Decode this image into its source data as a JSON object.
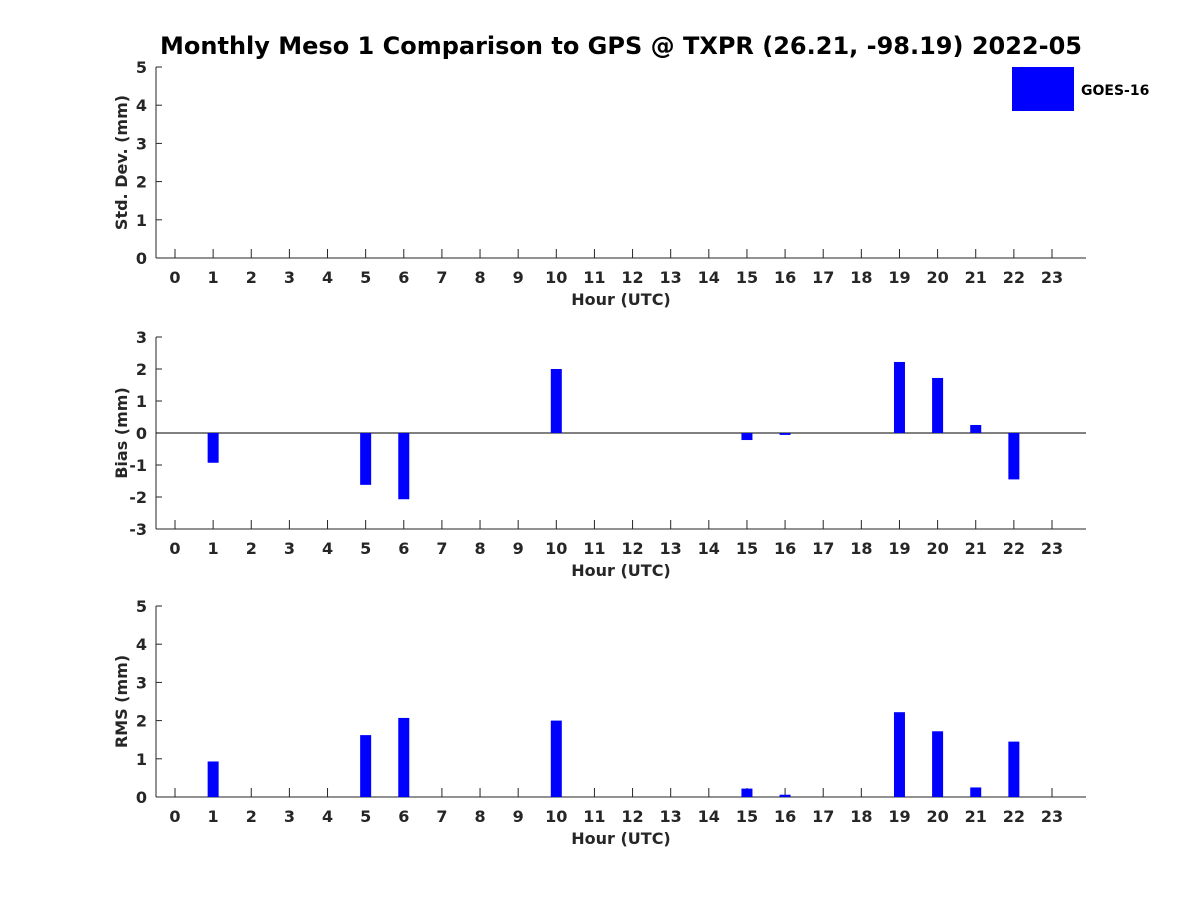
{
  "title": "Monthly Meso 1 Comparison to GPS @ TXPR (26.21, -98.19) 2022-05",
  "legend": {
    "label": "GOES-16",
    "color": "#0000ff",
    "placement": "top-right"
  },
  "chart_data": [
    {
      "type": "bar",
      "name": "std_dev",
      "ylabel": "Std. Dev. (mm)",
      "xlabel": "Hour (UTC)",
      "ylim": [
        0,
        5
      ],
      "yticks": [
        0,
        1,
        2,
        3,
        4,
        5
      ],
      "categories": [
        "0",
        "1",
        "2",
        "3",
        "4",
        "5",
        "6",
        "7",
        "8",
        "9",
        "10",
        "11",
        "12",
        "13",
        "14",
        "15",
        "16",
        "17",
        "18",
        "19",
        "20",
        "21",
        "22",
        "23"
      ],
      "series": [
        {
          "name": "GOES-16",
          "values": [
            null,
            null,
            null,
            null,
            null,
            null,
            null,
            null,
            null,
            null,
            null,
            null,
            null,
            null,
            null,
            null,
            null,
            null,
            null,
            null,
            null,
            null,
            null,
            null
          ]
        }
      ],
      "grid": false
    },
    {
      "type": "bar",
      "name": "bias",
      "ylabel": "Bias (mm)",
      "xlabel": "Hour (UTC)",
      "ylim": [
        -3,
        3
      ],
      "yticks": [
        -3,
        -2,
        -1,
        0,
        1,
        2,
        3
      ],
      "zero_line": true,
      "categories": [
        "0",
        "1",
        "2",
        "3",
        "4",
        "5",
        "6",
        "7",
        "8",
        "9",
        "10",
        "11",
        "12",
        "13",
        "14",
        "15",
        "16",
        "17",
        "18",
        "19",
        "20",
        "21",
        "22",
        "23"
      ],
      "series": [
        {
          "name": "GOES-16",
          "values": [
            null,
            -0.93,
            null,
            null,
            null,
            -1.62,
            -2.07,
            null,
            null,
            null,
            2.0,
            null,
            null,
            null,
            null,
            -0.22,
            -0.06,
            null,
            null,
            2.22,
            1.72,
            0.25,
            -1.45,
            null
          ]
        }
      ],
      "grid": false
    },
    {
      "type": "bar",
      "name": "rms",
      "ylabel": "RMS (mm)",
      "xlabel": "Hour (UTC)",
      "ylim": [
        0,
        5
      ],
      "yticks": [
        0,
        1,
        2,
        3,
        4,
        5
      ],
      "categories": [
        "0",
        "1",
        "2",
        "3",
        "4",
        "5",
        "6",
        "7",
        "8",
        "9",
        "10",
        "11",
        "12",
        "13",
        "14",
        "15",
        "16",
        "17",
        "18",
        "19",
        "20",
        "21",
        "22",
        "23"
      ],
      "series": [
        {
          "name": "GOES-16",
          "values": [
            null,
            0.93,
            null,
            null,
            null,
            1.62,
            2.07,
            null,
            null,
            null,
            2.0,
            null,
            null,
            null,
            null,
            0.22,
            0.06,
            null,
            null,
            2.22,
            1.72,
            0.25,
            1.45,
            null
          ]
        }
      ],
      "grid": false
    }
  ]
}
